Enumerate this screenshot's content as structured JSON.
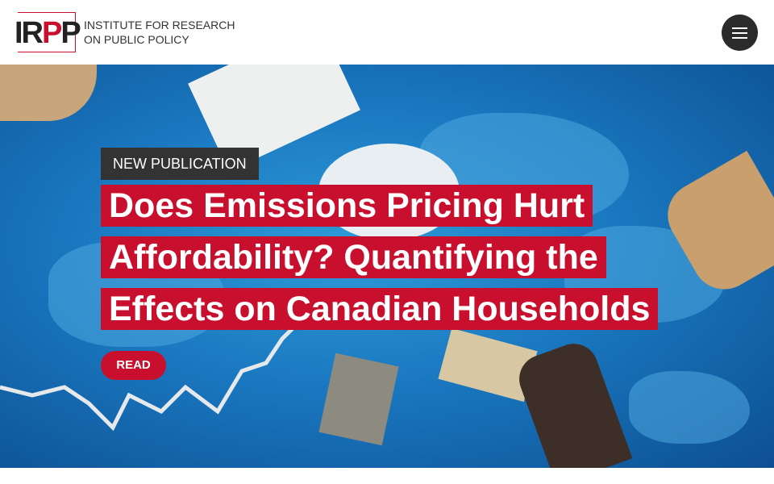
{
  "header": {
    "logo_text": "IRPP",
    "institute_line1": "INSTITUTE FOR RESEARCH",
    "institute_line2": "ON PUBLIC POLICY",
    "menu_icon": "hamburger-icon"
  },
  "hero": {
    "badge": "NEW PUBLICATION",
    "title": "Does Emissions Pricing Hurt Affordability? Quantifying the Effects on Canadian Households",
    "read_label": "READ"
  },
  "colors": {
    "brand_red": "#c8102e",
    "dark": "#333333",
    "hero_blue": "#1a78c0"
  }
}
